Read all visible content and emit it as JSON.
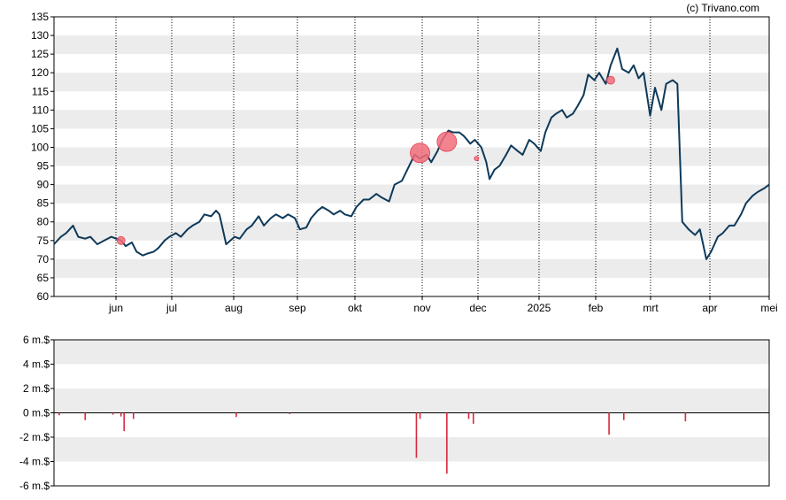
{
  "credit": "(c) Trivano.com",
  "colors": {
    "price_line": "#0e3a5a",
    "band": "#ececec",
    "marker": "#f26d7d",
    "marker_stroke": "#e04050",
    "volume_bar": "#d8283c",
    "zero_line": "#000000"
  },
  "chart_data": [
    {
      "type": "line",
      "name": "price",
      "ylim": [
        60,
        135
      ],
      "yticks": [
        60,
        65,
        70,
        75,
        80,
        85,
        90,
        95,
        100,
        105,
        110,
        115,
        120,
        125,
        130,
        135
      ],
      "grid": "alternating horizontal bands, dotted vertical month lines",
      "xticks": [
        "jun",
        "jul",
        "aug",
        "sep",
        "okt",
        "nov",
        "dec",
        "2025",
        "feb",
        "mrt",
        "apr",
        "mei"
      ],
      "x_start": "2024-05-02",
      "x_end": "2025-05-01",
      "points": [
        [
          "2024-05-02",
          74
        ],
        [
          "2024-05-06",
          76
        ],
        [
          "2024-05-09",
          77
        ],
        [
          "2024-05-13",
          79
        ],
        [
          "2024-05-16",
          76
        ],
        [
          "2024-05-20",
          75.5
        ],
        [
          "2024-05-23",
          76
        ],
        [
          "2024-05-27",
          74
        ],
        [
          "2024-05-31",
          75
        ],
        [
          "2024-06-04",
          76
        ],
        [
          "2024-06-07",
          75.5
        ],
        [
          "2024-06-10",
          75
        ],
        [
          "2024-06-13",
          73.5
        ],
        [
          "2024-06-17",
          74.5
        ],
        [
          "2024-06-20",
          72
        ],
        [
          "2024-06-24",
          71
        ],
        [
          "2024-06-27",
          71.5
        ],
        [
          "2024-07-01",
          72
        ],
        [
          "2024-07-04",
          73
        ],
        [
          "2024-07-08",
          75
        ],
        [
          "2024-07-11",
          76
        ],
        [
          "2024-07-15",
          77
        ],
        [
          "2024-07-18",
          76
        ],
        [
          "2024-07-22",
          78
        ],
        [
          "2024-07-25",
          79
        ],
        [
          "2024-07-29",
          80
        ],
        [
          "2024-08-01",
          82
        ],
        [
          "2024-08-05",
          81.5
        ],
        [
          "2024-08-08",
          83
        ],
        [
          "2024-08-10",
          82
        ],
        [
          "2024-08-14",
          74
        ],
        [
          "2024-08-19",
          76
        ],
        [
          "2024-08-22",
          75.5
        ],
        [
          "2024-08-26",
          78
        ],
        [
          "2024-08-29",
          79
        ],
        [
          "2024-09-02",
          81.5
        ],
        [
          "2024-09-05",
          79
        ],
        [
          "2024-09-09",
          81
        ],
        [
          "2024-09-12",
          82
        ],
        [
          "2024-09-16",
          81
        ],
        [
          "2024-09-19",
          82
        ],
        [
          "2024-09-23",
          81
        ],
        [
          "2024-09-26",
          78
        ],
        [
          "2024-09-30",
          78.5
        ],
        [
          "2024-10-03",
          81
        ],
        [
          "2024-10-07",
          83
        ],
        [
          "2024-10-10",
          84
        ],
        [
          "2024-10-14",
          83
        ],
        [
          "2024-10-17",
          82
        ],
        [
          "2024-10-21",
          83
        ],
        [
          "2024-10-24",
          82
        ],
        [
          "2024-10-28",
          81.5
        ],
        [
          "2024-10-31",
          84
        ],
        [
          "2024-11-04",
          86
        ],
        [
          "2024-11-07",
          86
        ],
        [
          "2024-11-11",
          87.5
        ],
        [
          "2024-11-14",
          86.5
        ],
        [
          "2024-11-18",
          85.5
        ],
        [
          "2024-11-21",
          90
        ],
        [
          "2024-11-25",
          91
        ],
        [
          "2024-11-28",
          94
        ],
        [
          "2024-12-02",
          98
        ],
        [
          "2024-12-05",
          97
        ],
        [
          "2024-12-09",
          98
        ],
        [
          "2024-12-12",
          96
        ],
        [
          "2024-12-16",
          99
        ],
        [
          "2024-12-19",
          102
        ],
        [
          "2024-12-23",
          104.5
        ],
        [
          "2024-12-26",
          104
        ],
        [
          "2024-12-30",
          104
        ],
        [
          "2025-01-02",
          103
        ],
        [
          "2025-01-06",
          101
        ],
        [
          "2025-01-09",
          102
        ],
        [
          "2025-01-13",
          100
        ],
        [
          "2025-01-16",
          96
        ],
        [
          "2025-01-18",
          91.5
        ],
        [
          "2025-01-21",
          94
        ],
        [
          "2025-01-24",
          95
        ],
        [
          "2025-01-28",
          98
        ],
        [
          "2025-01-31",
          100.5
        ],
        [
          "2025-02-04",
          99
        ],
        [
          "2025-02-07",
          98
        ],
        [
          "2025-02-11",
          102
        ],
        [
          "2025-02-14",
          101
        ],
        [
          "2025-02-18",
          99
        ],
        [
          "2025-02-21",
          104
        ],
        [
          "2025-02-25",
          108
        ],
        [
          "2025-02-28",
          109
        ],
        [
          "2025-03-04",
          110
        ],
        [
          "2025-03-07",
          108
        ],
        [
          "2025-03-11",
          109
        ],
        [
          "2025-03-14",
          111
        ],
        [
          "2025-03-18",
          114
        ],
        [
          "2025-03-21",
          119.5
        ],
        [
          "2025-03-25",
          118
        ],
        [
          "2025-03-28",
          120
        ],
        [
          "2025-04-01",
          117
        ],
        [
          "2025-04-04",
          122
        ],
        [
          "2025-04-08",
          126.5
        ],
        [
          "2025-04-11",
          121
        ],
        [
          "2025-04-15",
          120
        ],
        [
          "2025-04-18",
          122
        ],
        [
          "2025-04-21",
          118.5
        ],
        [
          "2025-04-24",
          120
        ],
        [
          "2025-04-28",
          108.5
        ],
        [
          "2025-05-01",
          116
        ],
        [
          "2025-05-05",
          110
        ],
        [
          "2025-05-08",
          117
        ],
        [
          "2025-05-12",
          118
        ],
        [
          "2025-05-15",
          117
        ],
        [
          "2025-05-18",
          80
        ],
        [
          "2025-05-22",
          78
        ],
        [
          "2025-05-26",
          76.5
        ],
        [
          "2025-05-29",
          78
        ],
        [
          "2025-06-02",
          70
        ],
        [
          "2025-06-05",
          72
        ],
        [
          "2025-06-09",
          76
        ],
        [
          "2025-06-12",
          77
        ],
        [
          "2025-06-16",
          79
        ],
        [
          "2025-06-19",
          79
        ],
        [
          "2025-06-23",
          82
        ],
        [
          "2025-06-26",
          85
        ],
        [
          "2025-06-30",
          87
        ],
        [
          "2025-07-03",
          88
        ],
        [
          "2025-07-07",
          89
        ],
        [
          "2025-07-10",
          90
        ]
      ],
      "markers": [
        {
          "date": "2024-06-10",
          "value": 75,
          "size": "small"
        },
        {
          "date": "2024-12-05",
          "value": 98.5,
          "size": "large"
        },
        {
          "date": "2024-12-22",
          "value": 101.5,
          "size": "large"
        },
        {
          "date": "2025-01-10",
          "value": 97,
          "size": "tiny"
        },
        {
          "date": "2025-04-04",
          "value": 118,
          "size": "small"
        }
      ]
    },
    {
      "type": "bar",
      "name": "volume",
      "unit": "m.$",
      "ylim": [
        -6,
        6
      ],
      "yticks": [
        "6 m.$",
        "4 m.$",
        "2 m.$",
        "0 m.$",
        "-2 m.$",
        "-4 m.$",
        "-6 m.$"
      ],
      "bars": [
        {
          "date": "2024-05-05",
          "value": -0.2
        },
        {
          "date": "2024-05-20",
          "value": -0.6
        },
        {
          "date": "2024-06-05",
          "value": -0.15
        },
        {
          "date": "2024-06-10",
          "value": -0.3
        },
        {
          "date": "2024-06-12",
          "value": -1.5
        },
        {
          "date": "2024-06-18",
          "value": -0.5
        },
        {
          "date": "2024-08-20",
          "value": -0.35
        },
        {
          "date": "2024-09-20",
          "value": -0.1
        },
        {
          "date": "2024-12-03",
          "value": -3.7
        },
        {
          "date": "2024-12-05",
          "value": -0.5
        },
        {
          "date": "2024-12-22",
          "value": -5.0
        },
        {
          "date": "2025-01-05",
          "value": -0.5
        },
        {
          "date": "2025-01-08",
          "value": -0.9
        },
        {
          "date": "2025-04-03",
          "value": -1.8
        },
        {
          "date": "2025-04-12",
          "value": -0.6
        },
        {
          "date": "2025-05-20",
          "value": -0.7
        }
      ]
    }
  ]
}
